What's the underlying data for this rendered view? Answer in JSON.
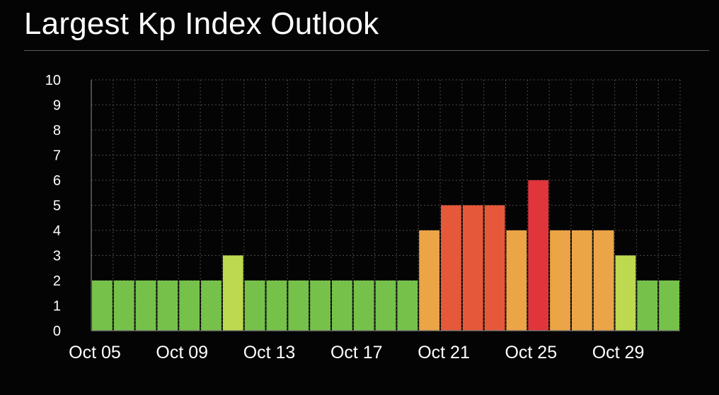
{
  "page": {
    "title": "Largest Kp Index Outlook"
  },
  "chart_data": {
    "type": "bar",
    "title": "Largest Kp Index Outlook",
    "xlabel": "",
    "ylabel": "",
    "ylim": [
      0,
      10
    ],
    "yticks": [
      "0",
      "1",
      "2",
      "3",
      "4",
      "5",
      "6",
      "7",
      "8",
      "9",
      "10"
    ],
    "xtick_labels": [
      {
        "index": 0,
        "label": "Oct 05"
      },
      {
        "index": 4,
        "label": "Oct 09"
      },
      {
        "index": 8,
        "label": "Oct 13"
      },
      {
        "index": 12,
        "label": "Oct 17"
      },
      {
        "index": 16,
        "label": "Oct 21"
      },
      {
        "index": 20,
        "label": "Oct 25"
      },
      {
        "index": 24,
        "label": "Oct 29"
      }
    ],
    "categories": [
      "Oct 05",
      "Oct 06",
      "Oct 07",
      "Oct 08",
      "Oct 09",
      "Oct 10",
      "Oct 11",
      "Oct 12",
      "Oct 13",
      "Oct 14",
      "Oct 15",
      "Oct 16",
      "Oct 17",
      "Oct 18",
      "Oct 19",
      "Oct 20",
      "Oct 21",
      "Oct 22",
      "Oct 23",
      "Oct 24",
      "Oct 25",
      "Oct 26",
      "Oct 27",
      "Oct 28",
      "Oct 29",
      "Oct 30",
      "Oct 31"
    ],
    "values": [
      2,
      2,
      2,
      2,
      2,
      2,
      3,
      2,
      2,
      2,
      2,
      2,
      2,
      2,
      2,
      4,
      5,
      5,
      5,
      4,
      6,
      4,
      4,
      4,
      3,
      2,
      2
    ],
    "grid": true,
    "legend": "none",
    "colors": {
      "1": "#76c14a",
      "2": "#76c14a",
      "3": "#bcd94f",
      "4": "#eba446",
      "5": "#e5593a",
      "6": "#e0353a",
      "background": "#040404",
      "grid": "#4a4a4a",
      "text": "#ffffff"
    }
  }
}
